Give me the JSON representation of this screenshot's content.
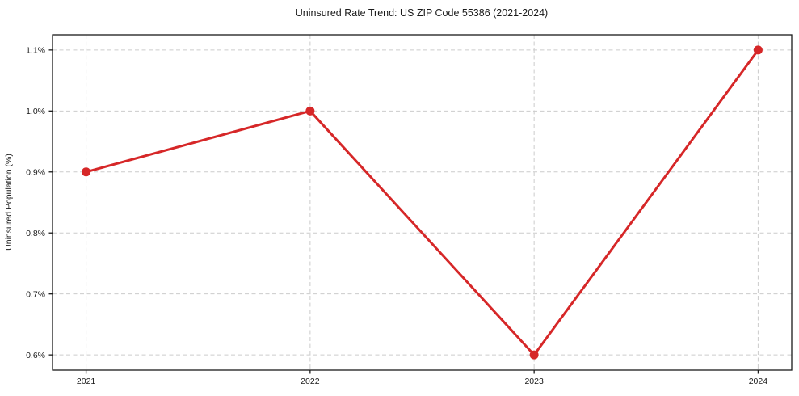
{
  "figure": {
    "title": "Uninsured Rate Trend: US ZIP Code 55386 (2021-2024)",
    "ylabel": "Uninsured Population (%)"
  },
  "chart_data": {
    "type": "line",
    "title": "Uninsured Rate Trend: US ZIP Code 55386 (2021-2024)",
    "xlabel": "",
    "ylabel": "Uninsured Population (%)",
    "x": [
      2021,
      2022,
      2023,
      2024
    ],
    "values": [
      0.9,
      1.0,
      0.6,
      1.1
    ],
    "xticks": [
      2021,
      2022,
      2023,
      2024
    ],
    "xtick_labels": [
      "2021",
      "2022",
      "2023",
      "2024"
    ],
    "yticks": [
      0.6,
      0.7,
      0.8,
      0.9,
      1.0,
      1.1
    ],
    "ytick_labels": [
      "0.6%",
      "0.7%",
      "0.8%",
      "0.9%",
      "1.0%",
      "1.1%"
    ],
    "xlim": [
      2020.85,
      2024.15
    ],
    "ylim": [
      0.575,
      1.125
    ],
    "grid": true,
    "grid_style": "dashed",
    "legend": false,
    "line_color": "#d62728",
    "marker": "circle",
    "marker_color": "#d62728",
    "grid_color": "#cccccc",
    "axis_color": "#1a1a1a",
    "background": "#ffffff"
  }
}
